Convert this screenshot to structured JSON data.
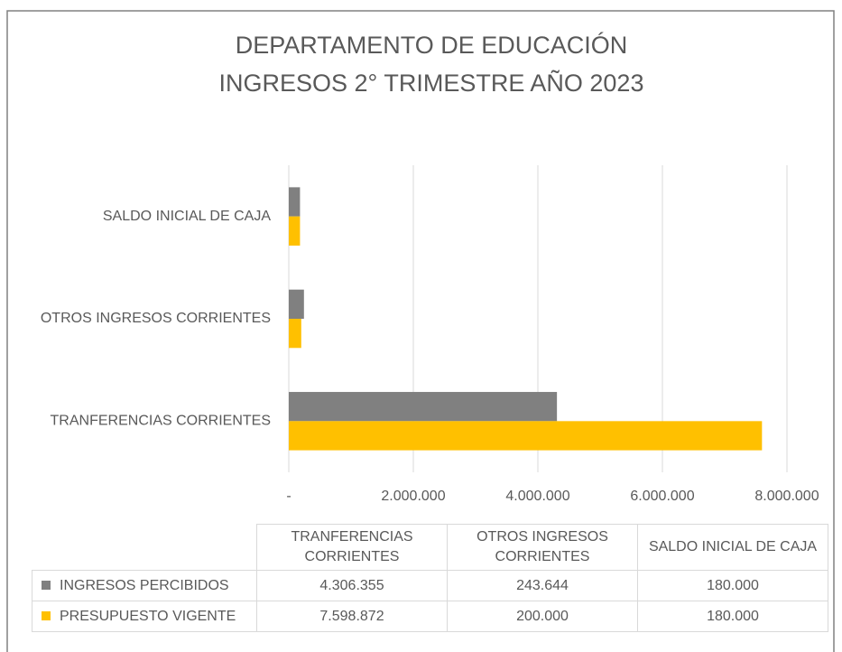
{
  "chart_data": {
    "type": "bar",
    "orientation": "horizontal",
    "title": [
      "DEPARTAMENTO DE EDUCACIÓN",
      "INGRESOS 2° TRIMESTRE AÑO 2023"
    ],
    "categories": [
      "TRANFERENCIAS CORRIENTES",
      "OTROS INGRESOS CORRIENTES",
      "SALDO INICIAL DE CAJA"
    ],
    "series": [
      {
        "name": "INGRESOS PERCIBIDOS",
        "color": "#808080",
        "values": [
          4306355,
          243644,
          180000
        ],
        "value_labels": [
          "4.306.355",
          "243.644",
          "180.000"
        ]
      },
      {
        "name": "PRESUPUESTO VIGENTE",
        "color": "#ffc000",
        "values": [
          7598872,
          200000,
          180000
        ],
        "value_labels": [
          "7.598.872",
          "200.000",
          "180.000"
        ]
      }
    ],
    "xlim": [
      0,
      8000000
    ],
    "xticks": [
      {
        "value": 0,
        "label": "-"
      },
      {
        "value": 2000000,
        "label": "2.000.000"
      },
      {
        "value": 4000000,
        "label": "4.000.000"
      },
      {
        "value": 6000000,
        "label": "6.000.000"
      },
      {
        "value": 8000000,
        "label": "8.000.000"
      }
    ],
    "grid": true,
    "legend": "table"
  }
}
